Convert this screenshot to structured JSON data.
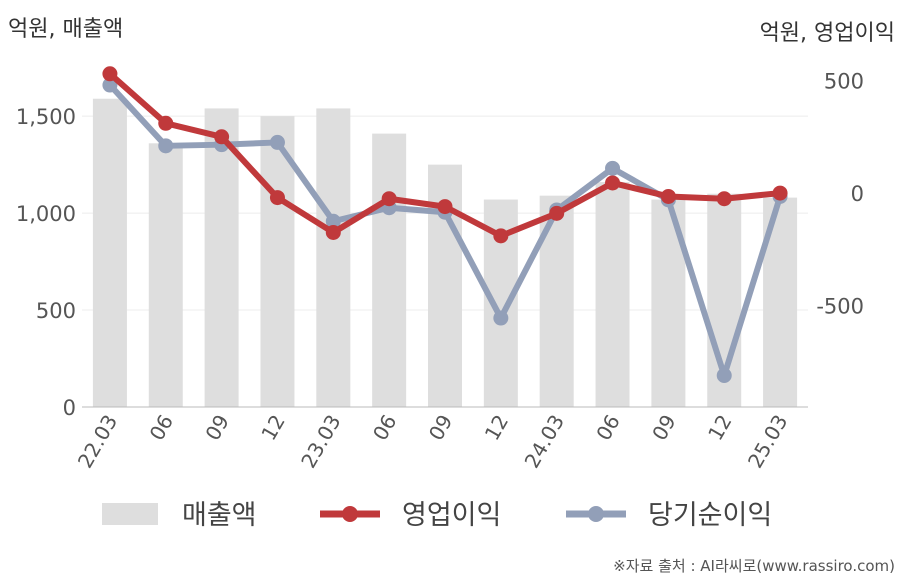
{
  "chart_data": {
    "type": "bar",
    "categories": [
      "22.03",
      "06",
      "09",
      "12",
      "23.03",
      "06",
      "09",
      "12",
      "24.03",
      "06",
      "09",
      "12",
      "25.03"
    ],
    "left_axis": {
      "title": "억원, 매출액",
      "ylim": [
        0,
        1800
      ],
      "ticks": [
        "0",
        "500",
        "1,000",
        "1,500"
      ],
      "tick_values": [
        0,
        500,
        1000,
        1500
      ]
    },
    "right_axis": {
      "title": "억원, 영업이익",
      "ylim": [
        -950,
        600
      ],
      "ticks": [
        "-500",
        "0",
        "500"
      ],
      "tick_values": [
        -500,
        0,
        500
      ]
    },
    "series": [
      {
        "name": "매출액",
        "type": "bar",
        "axis": "left",
        "values": [
          1590,
          1360,
          1540,
          1500,
          1540,
          1410,
          1250,
          1070,
          1090,
          1160,
          1070,
          1100,
          1080
        ]
      },
      {
        "name": "영업이익",
        "type": "line",
        "axis": "right",
        "values": [
          530,
          310,
          250,
          -20,
          -175,
          -25,
          -60,
          -190,
          -90,
          45,
          -15,
          -25,
          0
        ]
      },
      {
        "name": "당기순이익",
        "type": "line",
        "axis": "right",
        "values": [
          480,
          210,
          215,
          225,
          -125,
          -65,
          -85,
          -555,
          -75,
          110,
          -30,
          -810,
          -15
        ]
      }
    ],
    "colors": {
      "bars": "#dedede",
      "operating_profit": "#c0393b",
      "net_income": "#929fb8"
    },
    "grid": true,
    "legend_placement": "bottom"
  },
  "source": "※자료 출처 : AI라씨로(www.rassiro.com)"
}
